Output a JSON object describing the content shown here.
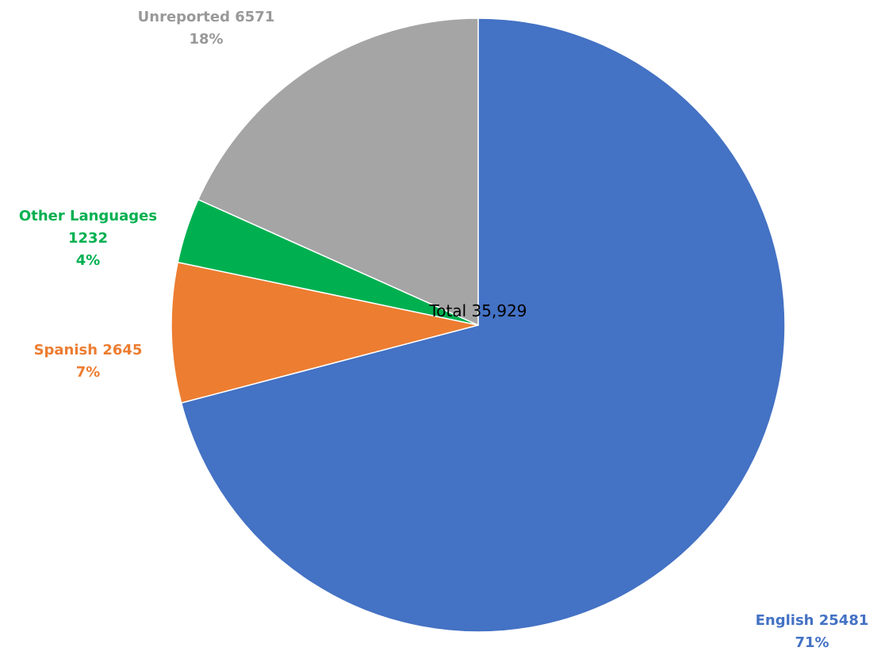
{
  "chart_data": {
    "type": "pie",
    "total_label": "Total 35,929",
    "start_angle_deg": 0,
    "direction": "clockwise",
    "slices": [
      {
        "name": "English",
        "value": 25481,
        "percent_label": "71%",
        "color": "#4472C4",
        "label_lines": [
          "English 25481",
          "71%"
        ]
      },
      {
        "name": "Spanish",
        "value": 2645,
        "percent_label": "7%",
        "color": "#ED7D31",
        "label_lines": [
          "Spanish 2645",
          "7%"
        ]
      },
      {
        "name": "Other Languages",
        "value": 1232,
        "percent_label": "4%",
        "color": "#00B050",
        "label_lines": [
          "Other Languages",
          "1232",
          "4%"
        ]
      },
      {
        "name": "Unreported",
        "value": 6571,
        "percent_label": "18%",
        "color": "#A5A5A5",
        "label_lines": [
          "Unreported 6571",
          "18%"
        ]
      }
    ]
  }
}
